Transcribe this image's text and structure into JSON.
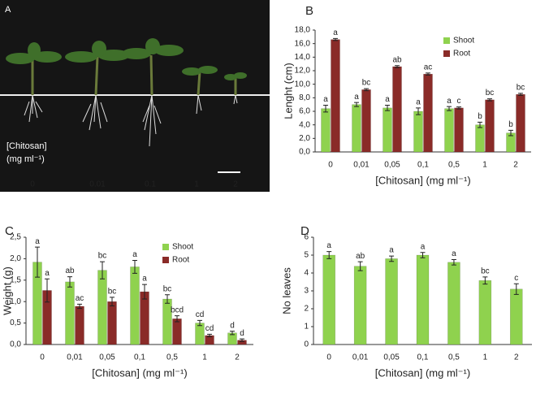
{
  "panel_a": {
    "label": "A",
    "legend_line1": "[Chitosan]",
    "legend_line2": "(mg ml⁻¹)",
    "doses": [
      "0",
      "0.01",
      "0.1",
      "1",
      "2"
    ]
  },
  "chart_data": [
    {
      "type": "bar",
      "panel": "B",
      "ylabel": "Lenght (cm)",
      "xlabel": "[Chitosan] (mg ml⁻¹)",
      "categories": [
        "0",
        "0,01",
        "0,05",
        "0,1",
        "0,5",
        "1",
        "2"
      ],
      "ylim": [
        0,
        18
      ],
      "yticks": [
        {
          "value": 0,
          "label": "0,0"
        },
        {
          "value": 2,
          "label": "2,0"
        },
        {
          "value": 4,
          "label": "4,0"
        },
        {
          "value": 6,
          "label": "6,0"
        },
        {
          "value": 8,
          "label": "8,0"
        },
        {
          "value": 10,
          "label": "10,0"
        },
        {
          "value": 12,
          "label": "12,0"
        },
        {
          "value": 14,
          "label": "14,0"
        },
        {
          "value": 16,
          "label": "16,0"
        },
        {
          "value": 18,
          "label": "18,0"
        }
      ],
      "legend": "top right",
      "series": [
        {
          "name": "Shoot",
          "color": "#8fd24e",
          "values": [
            6.4,
            7.0,
            6.5,
            6.0,
            6.4,
            4.0,
            2.8
          ],
          "errors": [
            0.5,
            0.3,
            0.4,
            0.5,
            0.3,
            0.4,
            0.4
          ],
          "letters": [
            "a",
            "a",
            "a",
            "a",
            "a",
            "b",
            "b"
          ]
        },
        {
          "name": "Root",
          "color": "#8a2b28",
          "values": [
            16.6,
            9.2,
            12.6,
            11.5,
            6.5,
            7.7,
            8.5
          ],
          "errors": [
            0.15,
            0.15,
            0.15,
            0.15,
            0.15,
            0.15,
            0.15
          ],
          "letters": [
            "a",
            "bc",
            "ab",
            "ac",
            "c",
            "bc",
            "bc"
          ]
        }
      ]
    },
    {
      "type": "bar",
      "panel": "C",
      "ylabel": "Weight (g)",
      "xlabel": "[Chitosan] (mg ml⁻¹)",
      "categories": [
        "0",
        "0,01",
        "0,05",
        "0,1",
        "0,5",
        "1",
        "2"
      ],
      "ylim": [
        0,
        2.5
      ],
      "yticks": [
        {
          "value": 0,
          "label": "0,0"
        },
        {
          "value": 0.5,
          "label": "0,5"
        },
        {
          "value": 1,
          "label": "1,0"
        },
        {
          "value": 1.5,
          "label": "1,5"
        },
        {
          "value": 2,
          "label": "2,0"
        },
        {
          "value": 2.5,
          "label": "2,5"
        }
      ],
      "legend": "top right",
      "series": [
        {
          "name": "Shoot",
          "color": "#8fd24e",
          "values": [
            1.92,
            1.46,
            1.73,
            1.81,
            1.06,
            0.5,
            0.27
          ],
          "errors": [
            0.35,
            0.12,
            0.2,
            0.15,
            0.1,
            0.06,
            0.04
          ],
          "letters": [
            "a",
            "ab",
            "bc",
            "a",
            "bc",
            "cd",
            "d"
          ]
        },
        {
          "name": "Root",
          "color": "#8a2b28",
          "values": [
            1.26,
            0.89,
            1.0,
            1.23,
            0.6,
            0.21,
            0.1
          ],
          "errors": [
            0.27,
            0.05,
            0.1,
            0.17,
            0.07,
            0.03,
            0.03
          ],
          "letters": [
            "a",
            "ac",
            "bc",
            "a",
            "bcd",
            "cd",
            "d"
          ]
        }
      ]
    },
    {
      "type": "bar",
      "panel": "D",
      "ylabel": "No leaves",
      "xlabel": "[Chitosan] (mg ml⁻¹)",
      "categories": [
        "0",
        "0,01",
        "0,05",
        "0,1",
        "0,5",
        "1",
        "2"
      ],
      "ylim": [
        0,
        6
      ],
      "yticks": [
        0,
        1,
        2,
        3,
        4,
        5,
        6
      ],
      "series": [
        {
          "color": "#8fd24e",
          "values": [
            5.0,
            4.38,
            4.8,
            5.0,
            4.6,
            3.58,
            3.1
          ],
          "errors": [
            0.2,
            0.25,
            0.15,
            0.15,
            0.15,
            0.2,
            0.3
          ],
          "letters": [
            "a",
            "ab",
            "a",
            "a",
            "a",
            "bc",
            "c"
          ]
        }
      ]
    }
  ]
}
